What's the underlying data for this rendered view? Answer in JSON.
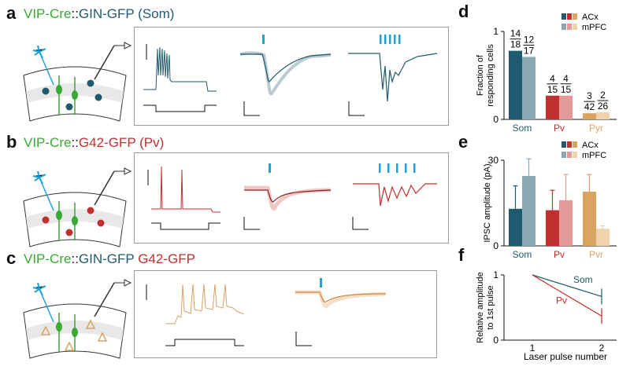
{
  "panels": {
    "a": {
      "letter": "a",
      "line": "VIP-Cre",
      "sep": "::",
      "reporter": "GIN-GFP (Som)"
    },
    "b": {
      "letter": "b",
      "line": "VIP-Cre",
      "sep": "::",
      "reporter": "G42-GFP (Pv)"
    },
    "c": {
      "letter": "c",
      "line": "VIP-Cre",
      "sep": "::",
      "reporter1": "GIN-GFP",
      "reporter2": "G42-GFP"
    },
    "d": {
      "letter": "d"
    },
    "e": {
      "letter": "e"
    },
    "f": {
      "letter": "f"
    }
  },
  "colors": {
    "som": "#1f5a6e",
    "som_light": "#8aa8b3",
    "pv": "#c0302f",
    "pv_light": "#e39a98",
    "pyr": "#d9a362",
    "pyr_light": "#f0d2ae",
    "blue": "#1fa3d6",
    "green": "#3aa935"
  },
  "chart_data": [
    {
      "type": "bar",
      "id": "d",
      "title": "",
      "ylabel": "Fraction of responding cells",
      "ylim": [
        0,
        1
      ],
      "yticks": [
        "0",
        "1"
      ],
      "categories": [
        "Som",
        "Pv",
        "Pyr"
      ],
      "legend": [
        "ACx",
        "mPFC"
      ],
      "series": [
        {
          "name": "ACx",
          "values": [
            0.78,
            0.27,
            0.07
          ]
        },
        {
          "name": "mPFC",
          "values": [
            0.71,
            0.27,
            0.08
          ]
        }
      ],
      "fractions": [
        {
          "num": "14",
          "den": "18"
        },
        {
          "num": "12",
          "den": "17"
        },
        {
          "num": "4",
          "den": "15"
        },
        {
          "num": "4",
          "den": "15"
        },
        {
          "num": "3",
          "den": "42"
        },
        {
          "num": "2",
          "den": "26"
        }
      ]
    },
    {
      "type": "bar",
      "id": "e",
      "ylabel": "IPSC amplitude (pA)",
      "ylim": [
        0,
        30
      ],
      "yticks": [
        "0",
        "30"
      ],
      "categories": [
        "Som",
        "Pv",
        "Pyr"
      ],
      "legend": [
        "ACx",
        "mPFC"
      ],
      "series": [
        {
          "name": "ACx",
          "values": [
            13,
            12.5,
            19
          ],
          "errors": [
            8,
            7,
            6
          ]
        },
        {
          "name": "mPFC",
          "values": [
            24.5,
            16,
            6
          ],
          "errors": [
            6,
            9,
            1
          ]
        }
      ]
    },
    {
      "type": "line",
      "id": "f",
      "xlabel": "Laser pulse number",
      "ylabel": "Relative amplitude to 1st pulse",
      "ylim": [
        0,
        1
      ],
      "yticks": [
        "0",
        "1"
      ],
      "xticks": [
        "1",
        "2"
      ],
      "series": [
        {
          "name": "Som",
          "x": [
            1,
            2
          ],
          "values": [
            1,
            0.67
          ],
          "error": 0.12
        },
        {
          "name": "Pv",
          "x": [
            1,
            2
          ],
          "values": [
            1,
            0.37
          ],
          "error": 0.12
        }
      ]
    }
  ]
}
